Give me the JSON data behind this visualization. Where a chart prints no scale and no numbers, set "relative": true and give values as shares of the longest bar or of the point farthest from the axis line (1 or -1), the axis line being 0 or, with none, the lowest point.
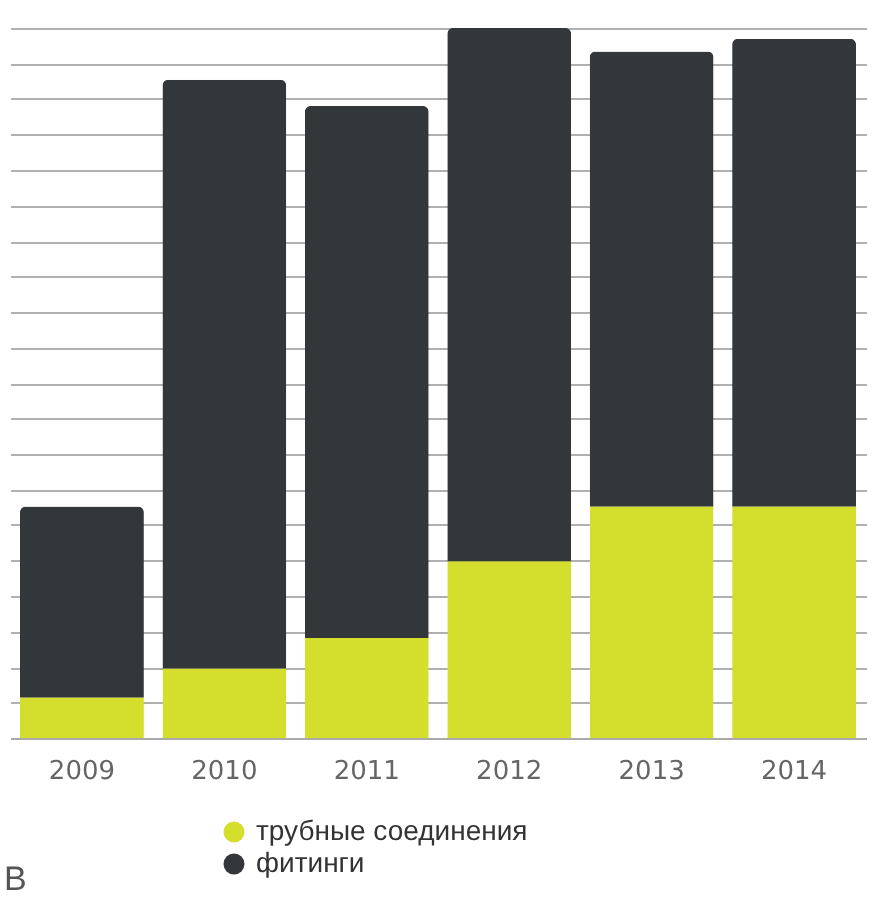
{
  "chart_data": {
    "type": "bar",
    "stacked": true,
    "relative": true,
    "grid": true,
    "legend": "bottom",
    "categories": [
      "2009",
      "2010",
      "2011",
      "2012",
      "2013",
      "2014"
    ],
    "series": [
      {
        "name": "трубные соединения",
        "color": "#d4de2c",
        "values": [
          0.057,
          0.098,
          0.141,
          0.249,
          0.326,
          0.326
        ]
      },
      {
        "name": "фитинги",
        "color": "#33373a",
        "values": [
          0.269,
          0.829,
          0.749,
          0.751,
          0.641,
          0.659
        ]
      }
    ],
    "annotations": [
      "В"
    ]
  }
}
